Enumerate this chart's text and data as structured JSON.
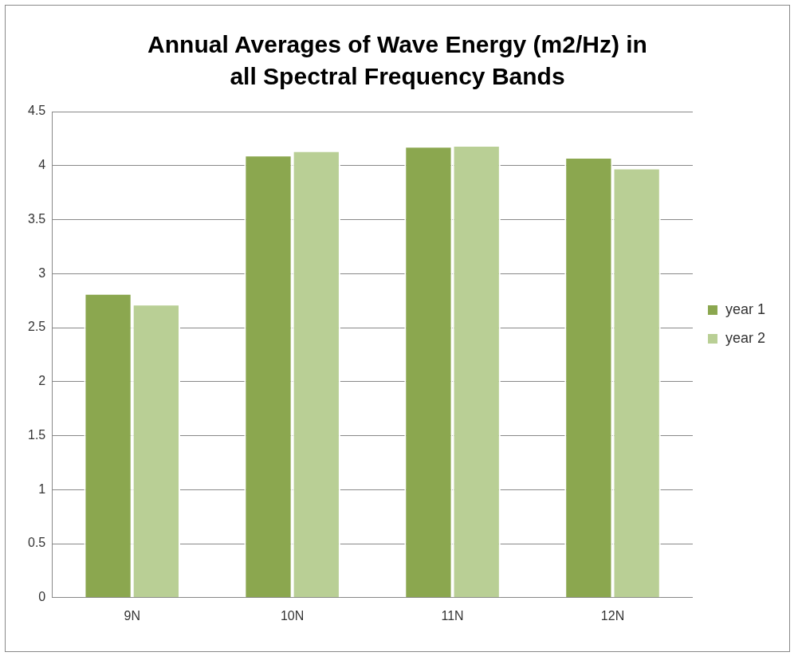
{
  "chart_data": {
    "type": "bar",
    "title": "Annual Averages of Wave Energy (m2/Hz) in all Spectral Frequency Bands",
    "categories": [
      "9N",
      "10N",
      "11N",
      "12N"
    ],
    "series": [
      {
        "name": "year 1",
        "color": "#8ba74f",
        "values": [
          2.82,
          4.1,
          4.18,
          4.08
        ]
      },
      {
        "name": "year 2",
        "color": "#b9cf95",
        "values": [
          2.72,
          4.14,
          4.19,
          3.98
        ]
      }
    ],
    "ylim": [
      0,
      4.5
    ],
    "yticks": [
      0,
      0.5,
      1,
      1.5,
      2,
      2.5,
      3,
      3.5,
      4,
      4.5
    ],
    "grid": "y",
    "legend": "right"
  }
}
